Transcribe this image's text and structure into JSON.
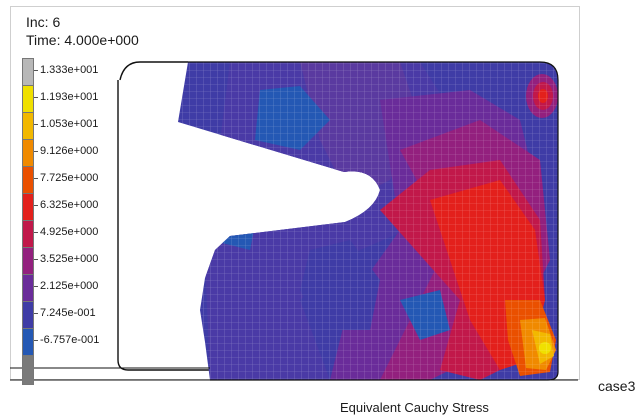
{
  "header": {
    "increment": "Inc: 6",
    "time": "Time: 4.000e+000"
  },
  "legend": {
    "labels": [
      "1.333e+001",
      "1.193e+001",
      "1.053e+001",
      "9.126e+000",
      "7.725e+000",
      "6.325e+000",
      "4.925e+000",
      "3.525e+000",
      "2.125e+000",
      "7.245e-001",
      "-6.757e-001"
    ],
    "colors": [
      "#b8b8b8",
      "#f0e000",
      "#f2b800",
      "#f08a00",
      "#ea5000",
      "#e3201c",
      "#c1184a",
      "#93207e",
      "#6a2c9a",
      "#3f3ca6",
      "#2458b4",
      "#7a7a7a"
    ]
  },
  "plot": {
    "title": "Equivalent Cauchy Stress",
    "case_label": "case3"
  }
}
